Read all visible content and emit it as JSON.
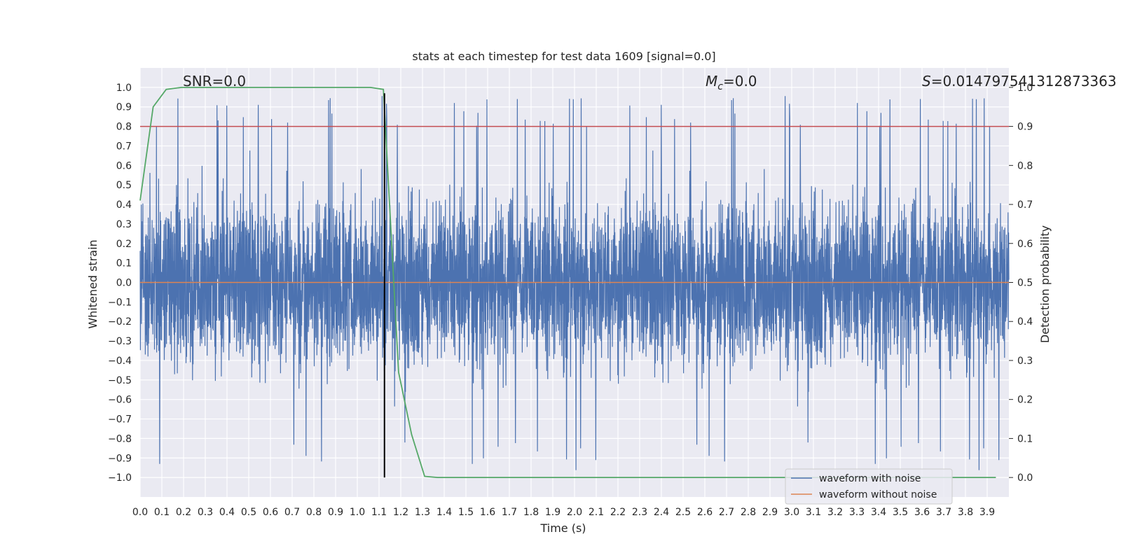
{
  "chart_data": {
    "type": "line",
    "title": "stats at each timestep for test data 1609 [signal=0.0]",
    "xlabel": "Time (s)",
    "ylabel": "Whitened strain",
    "ylabel_right": "Detection probability",
    "xlim": [
      0.0,
      4.0
    ],
    "ylim": [
      -1.1,
      1.1
    ],
    "ylim_right": [
      -0.05,
      1.05
    ],
    "x_ticks": [
      "0.0",
      "0.1",
      "0.2",
      "0.3",
      "0.4",
      "0.5",
      "0.6",
      "0.7",
      "0.8",
      "0.9",
      "1.0",
      "1.1",
      "1.2",
      "1.3",
      "1.4",
      "1.5",
      "1.6",
      "1.7",
      "1.8",
      "1.9",
      "2.0",
      "2.1",
      "2.2",
      "2.3",
      "2.4",
      "2.5",
      "2.6",
      "2.7",
      "2.8",
      "2.9",
      "3.0",
      "3.1",
      "3.2",
      "3.3",
      "3.4",
      "3.5",
      "3.6",
      "3.7",
      "3.8",
      "3.9"
    ],
    "y_ticks": [
      "1.0",
      "0.9",
      "0.8",
      "0.7",
      "0.6",
      "0.5",
      "0.4",
      "0.3",
      "0.2",
      "0.1",
      "0.0",
      "−0.1",
      "−0.2",
      "−0.3",
      "−0.4",
      "−0.5",
      "−0.6",
      "−0.7",
      "−0.8",
      "−0.9",
      "−1.0"
    ],
    "y_ticks_right": [
      "1.0",
      "0.9",
      "0.8",
      "0.7",
      "0.6",
      "0.5",
      "0.4",
      "0.3",
      "0.2",
      "0.1",
      "0.0"
    ],
    "grid": true,
    "background": "#eaeaf2",
    "annotations": {
      "snr": "SNR=0.0",
      "mc_sym": "M",
      "mc_sub": "c",
      "mc_val": "=0.0",
      "s_sym": "S",
      "s_val": "=0.014797541312873363"
    },
    "series": [
      {
        "name": "waveform with noise",
        "color": "#4c72b0",
        "kind": "noise",
        "x_range": [
          0.0,
          4.0
        ],
        "amplitude_range": [
          -0.98,
          0.97
        ]
      },
      {
        "name": "waveform without noise",
        "color": "#dd8452",
        "x": [
          0.0,
          4.0
        ],
        "y": [
          0.0,
          0.0
        ]
      },
      {
        "color": "#55a868",
        "axis": "right",
        "x": [
          0.0,
          0.06,
          0.12,
          0.19,
          0.25,
          0.5,
          0.75,
          1.0,
          1.06,
          1.12,
          1.19,
          1.25,
          1.31,
          1.37,
          1.5,
          2.0,
          2.5,
          3.0,
          3.5,
          3.94
        ],
        "y": [
          0.71,
          0.95,
          0.995,
          1.0,
          1.0,
          1.0,
          1.0,
          1.0,
          1.0,
          0.995,
          0.27,
          0.11,
          0.003,
          0.0,
          0.0,
          0.0,
          0.0,
          0.0,
          0.0,
          0.0
        ]
      }
    ],
    "threshold": {
      "y_right": 0.9,
      "color": "#c44e52"
    },
    "vline": {
      "x": 1.125,
      "y_from": -1.0,
      "y_to": 0.97,
      "color": "#000000"
    },
    "legend": {
      "position": "lower-right",
      "entries": [
        "waveform with noise",
        "waveform without noise"
      ]
    }
  }
}
